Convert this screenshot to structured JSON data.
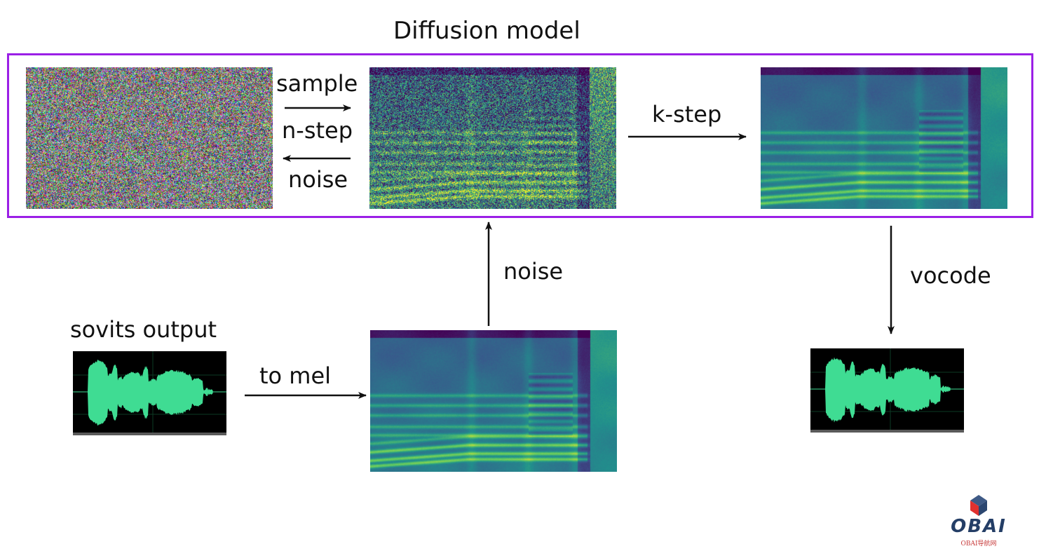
{
  "diagram": {
    "title": "Diffusion model",
    "labels": {
      "sample": "sample",
      "n_step": "n-step",
      "noise_back": "noise",
      "k_step": "k-step",
      "noise_up": "noise",
      "vocode": "vocode",
      "sovits_output": "sovits output",
      "to_mel": "to mel"
    },
    "colors": {
      "box_border": "#9b1fe6",
      "waveform": "#3fdc93",
      "arrow": "#111111"
    },
    "icons": {
      "noise_image": "random-noise-image",
      "noisy_mel": "noisy-spectrogram-image",
      "clean_mel": "spectrogram-image",
      "waveform": "waveform-image",
      "logo": "obai-cube-logo"
    }
  },
  "watermark": {
    "brand": "OBAI",
    "sub": "OBAI导航网"
  }
}
